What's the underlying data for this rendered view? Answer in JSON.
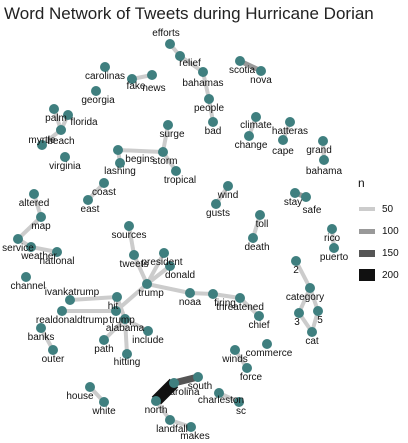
{
  "title": "Word Network of Tweets during Hurricane Dorian",
  "legend": {
    "title": "n",
    "entries": [
      {
        "label": "50",
        "color": "#cccccc"
      },
      {
        "label": "100",
        "color": "#999999"
      },
      {
        "label": "150",
        "color": "#555555"
      },
      {
        "label": "200",
        "color": "#111111"
      }
    ]
  },
  "colors": {
    "node": "#3f7f7f",
    "text": "#111111"
  },
  "nodes": [
    {
      "id": "efforts",
      "label": "efforts"
    },
    {
      "id": "relief",
      "label": "relief"
    },
    {
      "id": "bahamas",
      "label": "bahamas"
    },
    {
      "id": "people",
      "label": "people"
    },
    {
      "id": "bad",
      "label": "bad"
    },
    {
      "id": "scotia",
      "label": "scotia"
    },
    {
      "id": "nova",
      "label": "nova"
    },
    {
      "id": "carolinas",
      "label": "carolinas"
    },
    {
      "id": "fake",
      "label": "fake"
    },
    {
      "id": "news",
      "label": "news"
    },
    {
      "id": "georgia",
      "label": "georgia"
    },
    {
      "id": "palm",
      "label": "palm"
    },
    {
      "id": "florida",
      "label": "florida"
    },
    {
      "id": "beach",
      "label": "beach"
    },
    {
      "id": "myrtle",
      "label": "myrtle"
    },
    {
      "id": "virginia",
      "label": "virginia"
    },
    {
      "id": "climate",
      "label": "climate"
    },
    {
      "id": "change",
      "label": "change"
    },
    {
      "id": "hatteras",
      "label": "hatteras"
    },
    {
      "id": "cape",
      "label": "cape"
    },
    {
      "id": "grand",
      "label": "grand"
    },
    {
      "id": "bahama",
      "label": "bahama"
    },
    {
      "id": "surge",
      "label": "surge"
    },
    {
      "id": "begins",
      "label": "begins"
    },
    {
      "id": "storm",
      "label": "storm"
    },
    {
      "id": "lashing",
      "label": "lashing"
    },
    {
      "id": "tropical",
      "label": "tropical"
    },
    {
      "id": "coast",
      "label": "coast"
    },
    {
      "id": "east",
      "label": "east"
    },
    {
      "id": "wind",
      "label": "wind"
    },
    {
      "id": "gusts",
      "label": "gusts"
    },
    {
      "id": "stay",
      "label": "stay"
    },
    {
      "id": "safe",
      "label": "safe"
    },
    {
      "id": "altered",
      "label": "altered"
    },
    {
      "id": "map",
      "label": "map"
    },
    {
      "id": "service",
      "label": "service"
    },
    {
      "id": "weather",
      "label": "weather"
    },
    {
      "id": "national",
      "label": "national"
    },
    {
      "id": "channel",
      "label": "channel"
    },
    {
      "id": "toll",
      "label": "toll"
    },
    {
      "id": "death",
      "label": "death"
    },
    {
      "id": "rico",
      "label": "rico"
    },
    {
      "id": "puerto",
      "label": "puerto"
    },
    {
      "id": "sources",
      "label": "sources"
    },
    {
      "id": "tweets",
      "label": "tweets"
    },
    {
      "id": "president",
      "label": "president"
    },
    {
      "id": "donald",
      "label": "donald"
    },
    {
      "id": "trump",
      "label": "trump"
    },
    {
      "id": "noaa",
      "label": "noaa"
    },
    {
      "id": "firing",
      "label": "firing"
    },
    {
      "id": "threatened",
      "label": "threatened"
    },
    {
      "id": "n2",
      "label": "2"
    },
    {
      "id": "category",
      "label": "category"
    },
    {
      "id": "n3",
      "label": "3"
    },
    {
      "id": "n5",
      "label": "5"
    },
    {
      "id": "cat",
      "label": "cat"
    },
    {
      "id": "ivankatrump",
      "label": "ivankatrump"
    },
    {
      "id": "realdonaldtrump",
      "label": "realdonaldtrump"
    },
    {
      "id": "hit",
      "label": "hit"
    },
    {
      "id": "trump2",
      "label": "trump"
    },
    {
      "id": "alabama",
      "label": "alabama"
    },
    {
      "id": "include",
      "label": "include"
    },
    {
      "id": "path",
      "label": "path"
    },
    {
      "id": "hitting",
      "label": "hitting"
    },
    {
      "id": "chief",
      "label": "chief"
    },
    {
      "id": "commerce",
      "label": "commerce"
    },
    {
      "id": "banks",
      "label": "banks"
    },
    {
      "id": "outer",
      "label": "outer"
    },
    {
      "id": "winds",
      "label": "winds"
    },
    {
      "id": "force",
      "label": "force"
    },
    {
      "id": "carolina",
      "label": "carolina"
    },
    {
      "id": "south",
      "label": "south"
    },
    {
      "id": "charleston",
      "label": "charleston"
    },
    {
      "id": "sc",
      "label": "sc"
    },
    {
      "id": "house",
      "label": "house"
    },
    {
      "id": "white",
      "label": "white"
    },
    {
      "id": "north",
      "label": "north"
    },
    {
      "id": "landfall",
      "label": "landfall"
    },
    {
      "id": "makes",
      "label": "makes"
    }
  ],
  "edges": [
    {
      "from": "efforts",
      "to": "relief",
      "n": 60
    },
    {
      "from": "relief",
      "to": "bahamas",
      "n": 60
    },
    {
      "from": "bahamas",
      "to": "people",
      "n": 55
    },
    {
      "from": "people",
      "to": "bad",
      "n": 50
    },
    {
      "from": "scotia",
      "to": "nova",
      "n": 110
    },
    {
      "from": "fake",
      "to": "news",
      "n": 60
    },
    {
      "from": "palm",
      "to": "beach",
      "n": 55
    },
    {
      "from": "myrtle",
      "to": "beach",
      "n": 55
    },
    {
      "from": "florida",
      "to": "beach",
      "n": 60
    },
    {
      "from": "cape",
      "to": "hatteras",
      "n": 70
    },
    {
      "from": "climate",
      "to": "change",
      "n": 55
    },
    {
      "from": "grand",
      "to": "bahama",
      "n": 55
    },
    {
      "from": "begins",
      "to": "storm",
      "n": 55
    },
    {
      "from": "storm",
      "to": "surge",
      "n": 55
    },
    {
      "from": "storm",
      "to": "tropical",
      "n": 55
    },
    {
      "from": "lashing",
      "to": "begins",
      "n": 50
    },
    {
      "from": "east",
      "to": "coast",
      "n": 60
    },
    {
      "from": "wind",
      "to": "gusts",
      "n": 50
    },
    {
      "from": "stay",
      "to": "safe",
      "n": 110
    },
    {
      "from": "weather",
      "to": "service",
      "n": 60
    },
    {
      "from": "national",
      "to": "weather",
      "n": 60
    },
    {
      "from": "map",
      "to": "altered",
      "n": 50
    },
    {
      "from": "service",
      "to": "map",
      "n": 50
    },
    {
      "from": "death",
      "to": "toll",
      "n": 55
    },
    {
      "from": "puerto",
      "to": "rico",
      "n": 55
    },
    {
      "from": "sources",
      "to": "tweets",
      "n": 50
    },
    {
      "from": "president",
      "to": "trump",
      "n": 60
    },
    {
      "from": "donald",
      "to": "trump",
      "n": 60
    },
    {
      "from": "tweets",
      "to": "trump",
      "n": 55
    },
    {
      "from": "trump",
      "to": "noaa",
      "n": 60
    },
    {
      "from": "noaa",
      "to": "firing",
      "n": 55
    },
    {
      "from": "firing",
      "to": "threatened",
      "n": 55
    },
    {
      "from": "trump",
      "to": "trump2",
      "n": 60
    },
    {
      "from": "n2",
      "to": "category",
      "n": 60
    },
    {
      "from": "category",
      "to": "n3",
      "n": 60
    },
    {
      "from": "category",
      "to": "n5",
      "n": 60
    },
    {
      "from": "n5",
      "to": "cat",
      "n": 55
    },
    {
      "from": "n3",
      "to": "cat",
      "n": 50
    },
    {
      "from": "ivankatrump",
      "to": "hit",
      "n": 50
    },
    {
      "from": "realdonaldtrump",
      "to": "trump2",
      "n": 50
    },
    {
      "from": "hit",
      "to": "alabama",
      "n": 60
    },
    {
      "from": "alabama",
      "to": "include",
      "n": 55
    },
    {
      "from": "path",
      "to": "alabama",
      "n": 55
    },
    {
      "from": "hitting",
      "to": "alabama",
      "n": 55
    },
    {
      "from": "chief",
      "to": "threatened",
      "n": 50
    },
    {
      "from": "banks",
      "to": "outer",
      "n": 50
    },
    {
      "from": "winds",
      "to": "force",
      "n": 50
    },
    {
      "from": "north",
      "to": "carolina",
      "n": 210
    },
    {
      "from": "south",
      "to": "carolina",
      "n": 130
    },
    {
      "from": "charleston",
      "to": "sc",
      "n": 55
    },
    {
      "from": "house",
      "to": "white",
      "n": 55
    },
    {
      "from": "north",
      "to": "landfall",
      "n": 60
    },
    {
      "from": "landfall",
      "to": "makes",
      "n": 55
    }
  ]
}
